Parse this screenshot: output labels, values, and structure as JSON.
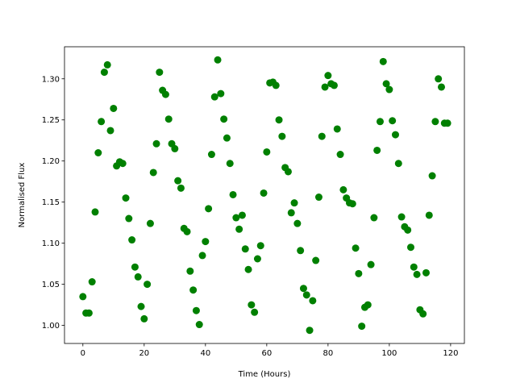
{
  "chart_data": {
    "type": "scatter",
    "xlabel": "Time (Hours)",
    "ylabel": "Normalised Flux",
    "color": "#008000",
    "x": [
      0,
      1,
      2,
      3,
      4,
      5,
      6,
      7,
      8,
      9,
      10,
      11,
      12,
      13,
      14,
      15,
      16,
      17,
      18,
      19,
      20,
      21,
      22,
      23,
      24,
      25,
      26,
      27,
      28,
      29,
      30,
      31,
      32,
      33,
      34,
      35,
      36,
      37,
      38,
      39,
      40,
      41,
      42,
      43,
      44,
      45,
      46,
      47,
      48,
      49,
      50,
      51,
      52,
      53,
      54,
      55,
      56,
      57,
      58,
      59,
      60,
      61,
      62,
      63,
      64,
      65,
      66,
      67,
      68,
      69,
      70,
      71,
      72,
      73,
      74,
      75,
      76,
      77,
      78,
      79,
      80,
      81,
      82,
      83,
      84,
      85,
      86,
      87,
      88,
      89,
      90,
      91,
      92,
      93,
      94,
      95,
      96,
      97,
      98,
      99,
      100,
      101,
      102,
      103,
      104,
      105,
      106,
      107,
      108,
      109,
      110,
      111,
      112,
      113,
      114,
      115,
      116,
      117,
      118,
      119
    ],
    "values": [
      1.035,
      1.015,
      1.015,
      1.053,
      1.138,
      1.21,
      1.248,
      1.308,
      1.317,
      1.237,
      1.264,
      1.194,
      1.199,
      1.197,
      1.155,
      1.13,
      1.104,
      1.071,
      1.059,
      1.023,
      1.008,
      1.05,
      1.124,
      1.186,
      1.221,
      1.308,
      1.286,
      1.281,
      1.251,
      1.221,
      1.215,
      1.176,
      1.167,
      1.118,
      1.114,
      1.066,
      1.043,
      1.018,
      1.001,
      1.085,
      1.102,
      1.142,
      1.208,
      1.278,
      1.323,
      1.282,
      1.251,
      1.228,
      1.197,
      1.159,
      1.131,
      1.117,
      1.134,
      1.093,
      1.068,
      1.025,
      1.016,
      1.081,
      1.097,
      1.161,
      1.211,
      1.295,
      1.296,
      1.292,
      1.25,
      1.23,
      1.192,
      1.187,
      1.137,
      1.149,
      1.124,
      1.091,
      1.045,
      1.037,
      0.994,
      1.03,
      1.079,
      1.156,
      1.23,
      1.29,
      1.304,
      1.294,
      1.292,
      1.239,
      1.208,
      1.165,
      1.155,
      1.149,
      1.148,
      1.094,
      1.063,
      0.999,
      1.022,
      1.025,
      1.074,
      1.131,
      1.213,
      1.248,
      1.321,
      1.294,
      1.287,
      1.249,
      1.232,
      1.197,
      1.132,
      1.12,
      1.116,
      1.095,
      1.071,
      1.062,
      1.019,
      1.014,
      1.064,
      1.134,
      1.182,
      1.248,
      1.3,
      1.29,
      1.246,
      1.246
    ],
    "xlim": [
      -6,
      124.5
    ],
    "ylim": [
      0.978,
      1.339
    ],
    "xticks": [
      0,
      20,
      40,
      60,
      80,
      100,
      120
    ],
    "yticks": [
      {
        "value": 1.0,
        "label": "1.00"
      },
      1.05,
      {
        "value": 1.1,
        "label": "1.10"
      },
      1.15,
      {
        "value": 1.2,
        "label": "1.20"
      },
      1.25,
      {
        "value": 1.3,
        "label": "1.30"
      }
    ]
  }
}
